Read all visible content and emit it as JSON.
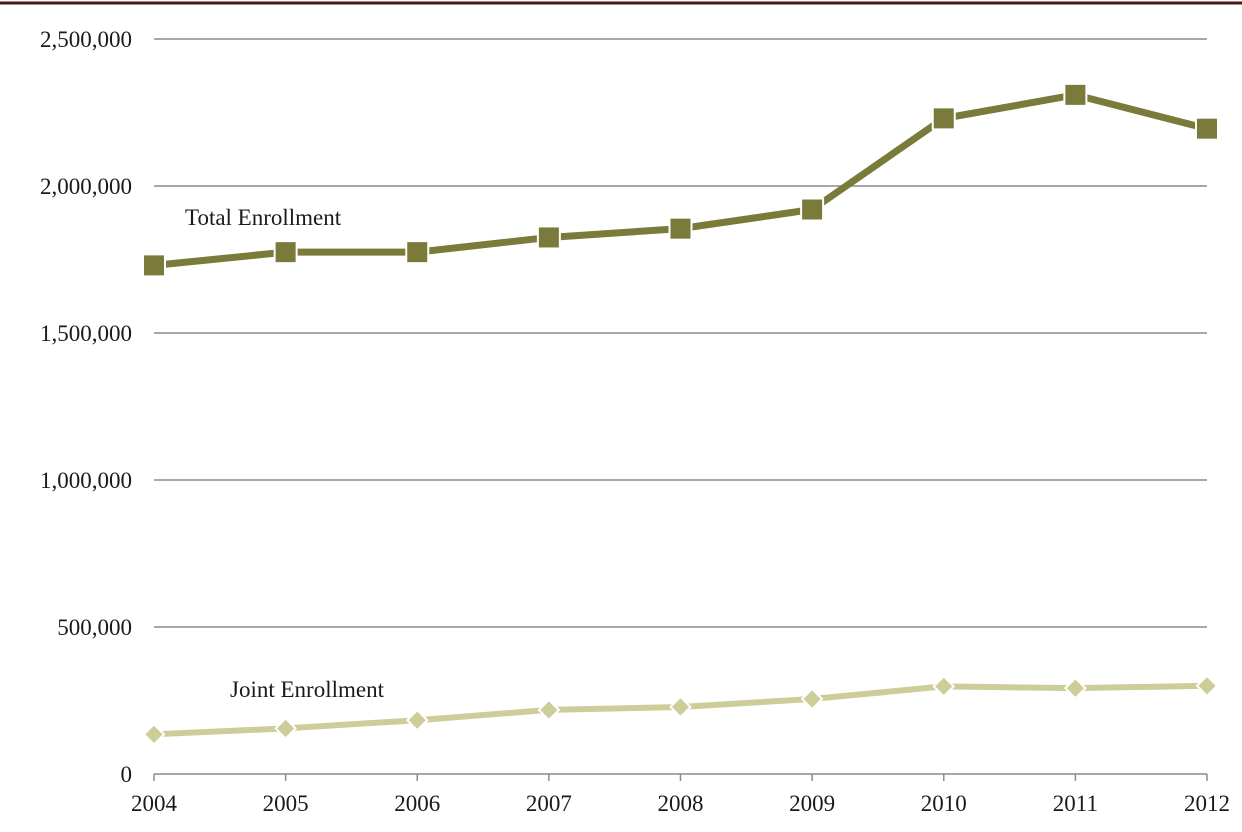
{
  "chart_data": {
    "type": "line",
    "x": [
      "2004",
      "2005",
      "2006",
      "2007",
      "2008",
      "2009",
      "2010",
      "2011",
      "2012"
    ],
    "ylim": [
      0,
      2500000
    ],
    "yticks": [
      0,
      500000,
      1000000,
      1500000,
      2000000,
      2500000
    ],
    "ytick_labels": [
      "0",
      "500,000",
      "1,000,000",
      "1,500,000",
      "2,000,000",
      "2,500,000"
    ],
    "grid": true,
    "legend": "none (series labeled inline)",
    "series": [
      {
        "name": "Total Enrollment",
        "marker": "square",
        "color": "#7a7a3a",
        "values": [
          1730000,
          1775000,
          1775000,
          1825000,
          1855000,
          1920000,
          2230000,
          2310000,
          2195000
        ]
      },
      {
        "name": "Joint Enrollment",
        "marker": "diamond",
        "color": "#cdcd9a",
        "values": [
          135000,
          155000,
          183000,
          218000,
          228000,
          255000,
          298000,
          292000,
          300000
        ]
      }
    ]
  },
  "colors": {
    "top_rule": "#4a1818",
    "gridline": "#8c8c8c",
    "axis": "#8c8c8c"
  }
}
